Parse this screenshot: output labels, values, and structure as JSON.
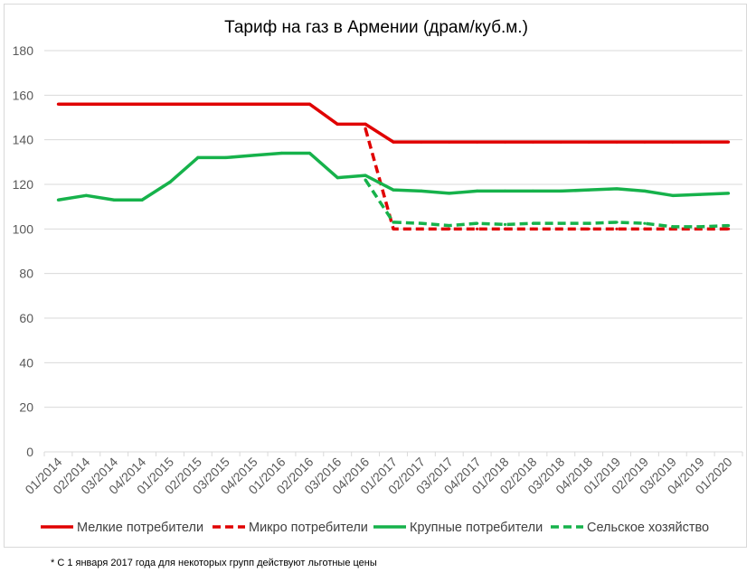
{
  "chart_data": {
    "type": "line",
    "title": "Тариф на газ в Армении (драм/куб.м.)",
    "xlabel": "",
    "ylabel": "",
    "ylim": [
      0,
      180
    ],
    "yticks": [
      0,
      20,
      40,
      60,
      80,
      100,
      120,
      140,
      160,
      180
    ],
    "grid": "horizontal",
    "legend_position": "bottom",
    "categories": [
      "01/2014",
      "02/2014",
      "03/2014",
      "04/2014",
      "01/2015",
      "02/2015",
      "03/2015",
      "04/2015",
      "01/2016",
      "02/2016",
      "03/2016",
      "04/2016",
      "01/2017",
      "02/2017",
      "03/2017",
      "04/2017",
      "01/2018",
      "02/2018",
      "03/2018",
      "04/2018",
      "01/2019",
      "02/2019",
      "03/2019",
      "04/2019",
      "01/2020"
    ],
    "series": [
      {
        "name": "Мелкие потребители",
        "color": "#e00000",
        "dash": false,
        "values": [
          156,
          156,
          156,
          156,
          156,
          156,
          156,
          156,
          156,
          156,
          147,
          147,
          139,
          139,
          139,
          139,
          139,
          139,
          139,
          139,
          139,
          139,
          139,
          139,
          139
        ]
      },
      {
        "name": "Микро потребители",
        "color": "#e00000",
        "dash": true,
        "values": [
          null,
          null,
          null,
          null,
          null,
          null,
          null,
          null,
          null,
          null,
          null,
          145,
          100,
          100,
          100,
          100,
          100,
          100,
          100,
          100,
          100,
          100,
          100,
          100,
          100
        ]
      },
      {
        "name": "Крупные потребители",
        "color": "#16b24b",
        "dash": false,
        "values": [
          113,
          115,
          113,
          113,
          121,
          132,
          132,
          133,
          134,
          134,
          123,
          124,
          117.5,
          117,
          116,
          117,
          117,
          117,
          117,
          117.5,
          118,
          117,
          115,
          115.5,
          116
        ]
      },
      {
        "name": "Сельское хозяйство",
        "color": "#16b24b",
        "dash": true,
        "values": [
          null,
          null,
          null,
          null,
          null,
          null,
          null,
          null,
          null,
          null,
          null,
          122,
          103,
          102.5,
          101.5,
          102.5,
          102,
          102.5,
          102.5,
          102.5,
          103,
          102.5,
          101,
          101,
          101.5
        ]
      }
    ]
  },
  "footnote": "* С 1 января 2017 года для некоторых групп действуют льготные цены"
}
